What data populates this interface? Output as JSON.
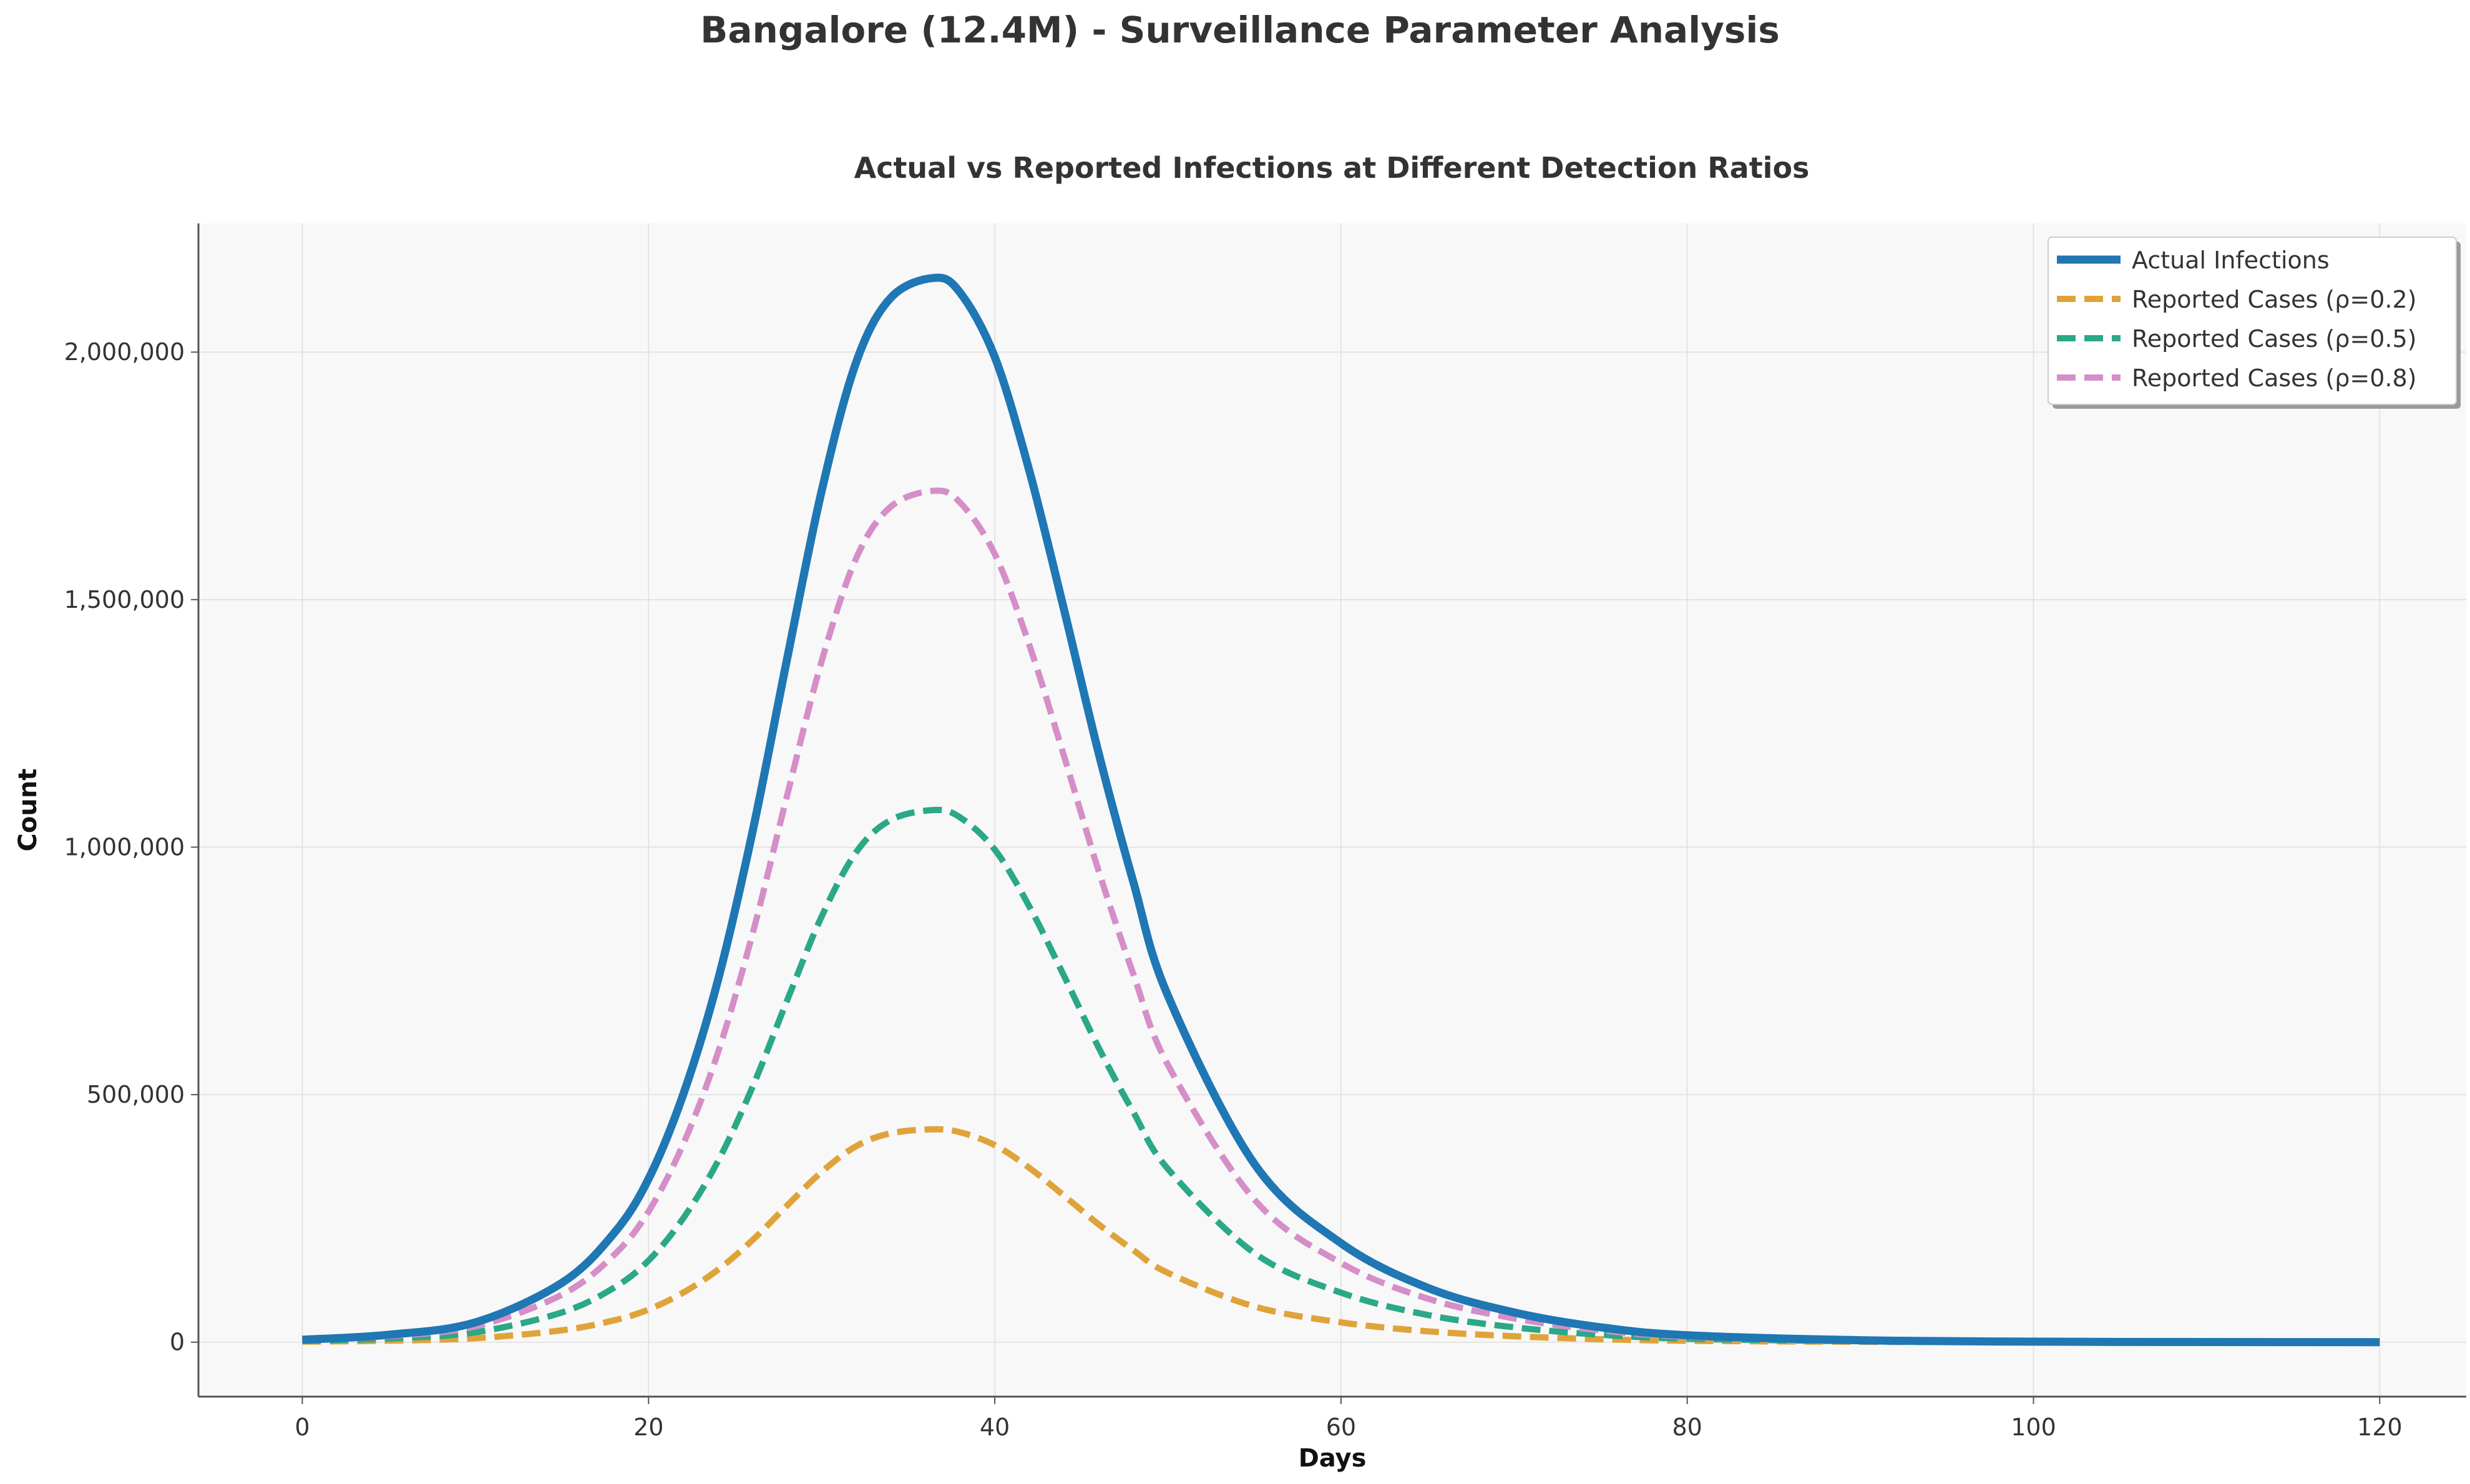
{
  "figure": {
    "suptitle": "Bangalore (12.4M) - Surveillance Parameter Analysis"
  },
  "chart_data": {
    "type": "line",
    "title": "Actual vs Reported Infections at Different Detection Ratios",
    "xlabel": "Days",
    "ylabel": "Count",
    "xlim": [
      -6,
      125
    ],
    "ylim": [
      -110000,
      2260000
    ],
    "x_ticks": [
      0,
      20,
      40,
      60,
      80,
      100,
      120
    ],
    "x_tick_labels": [
      "0",
      "20",
      "40",
      "60",
      "80",
      "100",
      "120"
    ],
    "y_ticks": [
      0,
      500000,
      1000000,
      1500000,
      2000000
    ],
    "y_tick_labels": [
      "0",
      "500,000",
      "1,000,000",
      "1,500,000",
      "2,000,000"
    ],
    "grid": true,
    "legend_position": "top-right",
    "x": [
      0,
      5,
      10,
      15,
      18,
      20,
      22,
      24,
      26,
      28,
      30,
      32,
      34,
      36.5,
      38,
      40,
      42,
      44,
      46,
      48,
      50,
      55,
      60,
      65,
      70,
      75,
      80,
      90,
      100,
      110,
      120
    ],
    "series": [
      {
        "name": "Actual Infections",
        "color": "#1f77b4",
        "style": "solid",
        "values": [
          5000,
          15000,
          40000,
          120000,
          220000,
          330000,
          500000,
          730000,
          1030000,
          1380000,
          1720000,
          1980000,
          2110000,
          2150000,
          2120000,
          1990000,
          1760000,
          1480000,
          1190000,
          930000,
          700000,
          360000,
          200000,
          110000,
          60000,
          30000,
          14000,
          4000,
          1000,
          300,
          50
        ]
      },
      {
        "name": "Reported Cases (ρ=0.2)",
        "color": "#e0a33a",
        "style": "dashed",
        "values": [
          1000,
          3000,
          8000,
          24000,
          44000,
          66000,
          100000,
          146000,
          206000,
          276000,
          344000,
          396000,
          422000,
          430000,
          424000,
          398000,
          352000,
          296000,
          238000,
          186000,
          140000,
          72000,
          40000,
          22000,
          12000,
          6000,
          2800,
          800,
          200,
          60,
          10
        ]
      },
      {
        "name": "Reported Cases (ρ=0.5)",
        "color": "#2aa888",
        "style": "dashed",
        "values": [
          2500,
          7500,
          20000,
          60000,
          110000,
          165000,
          250000,
          365000,
          515000,
          690000,
          860000,
          990000,
          1055000,
          1075000,
          1060000,
          995000,
          880000,
          740000,
          595000,
          465000,
          350000,
          180000,
          100000,
          55000,
          30000,
          15000,
          7000,
          2000,
          500,
          150,
          25
        ]
      },
      {
        "name": "Reported Cases (ρ=0.8)",
        "color": "#d58ec7",
        "style": "dashed",
        "values": [
          4000,
          12000,
          32000,
          96000,
          176000,
          264000,
          400000,
          584000,
          824000,
          1104000,
          1376000,
          1584000,
          1688000,
          1720000,
          1696000,
          1592000,
          1408000,
          1184000,
          952000,
          744000,
          560000,
          288000,
          160000,
          88000,
          48000,
          24000,
          11200,
          3200,
          800,
          240,
          40
        ]
      }
    ]
  }
}
